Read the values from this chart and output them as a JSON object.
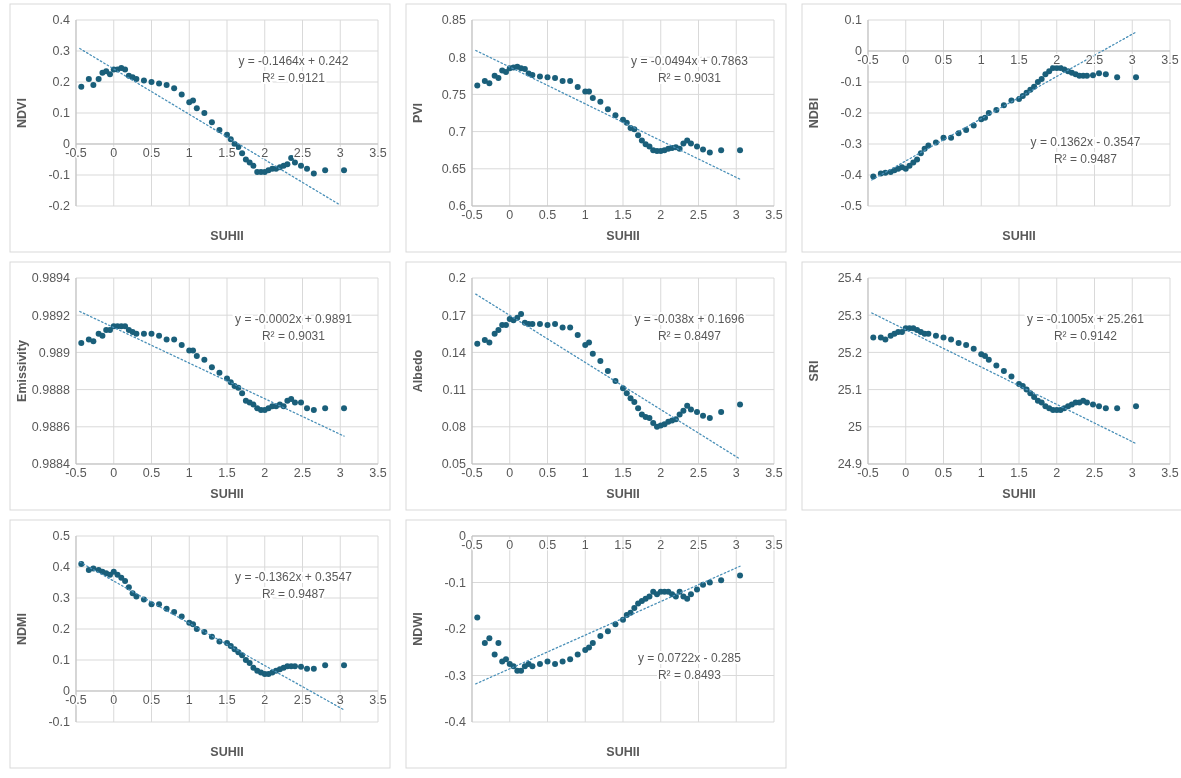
{
  "chart_data": [
    {
      "type": "scatter",
      "xlabel": "SUHII",
      "ylabel": "NDVI",
      "xlim": [
        -0.5,
        3.5
      ],
      "xticks": [
        -0.5,
        0,
        0.5,
        1,
        1.5,
        2,
        2.5,
        3,
        3.5
      ],
      "ylim": [
        -0.2,
        0.4
      ],
      "yticks": [
        -0.2,
        -0.1,
        0,
        0.1,
        0.2,
        0.3,
        0.4
      ],
      "grid": true,
      "marker": "circle",
      "x": [
        -0.43,
        -0.33,
        -0.27,
        -0.2,
        -0.15,
        -0.1,
        -0.05,
        0,
        0.05,
        0.1,
        0.15,
        0.2,
        0.25,
        0.3,
        0.4,
        0.5,
        0.6,
        0.7,
        0.8,
        0.9,
        1.0,
        1.05,
        1.1,
        1.2,
        1.3,
        1.4,
        1.5,
        1.55,
        1.6,
        1.65,
        1.7,
        1.75,
        1.8,
        1.85,
        1.9,
        1.95,
        2.0,
        2.05,
        2.1,
        2.15,
        2.2,
        2.25,
        2.3,
        2.35,
        2.4,
        2.48,
        2.56,
        2.65,
        2.8,
        3.05
      ],
      "series": [
        {
          "color": "#1a5f7a",
          "values": [
            0.185,
            0.21,
            0.19,
            0.21,
            0.23,
            0.235,
            0.225,
            0.24,
            0.24,
            0.245,
            0.24,
            0.22,
            0.215,
            0.21,
            0.205,
            0.2,
            0.195,
            0.19,
            0.18,
            0.16,
            0.135,
            0.14,
            0.115,
            0.1,
            0.07,
            0.045,
            0.03,
            0.015,
            0.0,
            -0.01,
            -0.03,
            -0.05,
            -0.06,
            -0.07,
            -0.09,
            -0.09,
            -0.09,
            -0.085,
            -0.08,
            -0.08,
            -0.075,
            -0.07,
            -0.065,
            -0.045,
            -0.06,
            -0.07,
            -0.08,
            -0.095,
            -0.085,
            -0.085
          ]
        },
        {
          "type": "line",
          "x": [
            -0.45,
            3.0
          ],
          "values": [
            0.308,
            -0.197
          ],
          "color": "#4a90b8",
          "line_style": "dotted",
          "marker": "none"
        }
      ],
      "annotations": [
        "y = -0.1464x + 0.242",
        "R² = 0.9121"
      ]
    },
    {
      "type": "scatter",
      "xlabel": "SUHII",
      "ylabel": "PVI",
      "xlim": [
        -0.5,
        3.5
      ],
      "xticks": [
        -0.5,
        0,
        0.5,
        1,
        1.5,
        2,
        2.5,
        3,
        3.5
      ],
      "ylim": [
        0.6,
        0.85
      ],
      "yticks": [
        0.6,
        0.65,
        0.7,
        0.75,
        0.8,
        0.85
      ],
      "grid": true,
      "marker": "circle",
      "x": [
        -0.43,
        -0.33,
        -0.27,
        -0.2,
        -0.15,
        -0.1,
        -0.05,
        0,
        0.05,
        0.1,
        0.15,
        0.2,
        0.25,
        0.3,
        0.4,
        0.5,
        0.6,
        0.7,
        0.8,
        0.9,
        1.0,
        1.05,
        1.1,
        1.2,
        1.3,
        1.4,
        1.5,
        1.55,
        1.6,
        1.65,
        1.7,
        1.75,
        1.8,
        1.85,
        1.9,
        1.95,
        2.0,
        2.05,
        2.1,
        2.15,
        2.2,
        2.25,
        2.3,
        2.35,
        2.4,
        2.48,
        2.56,
        2.65,
        2.8,
        3.05
      ],
      "series": [
        {
          "color": "#1a5f7a",
          "values": [
            0.762,
            0.768,
            0.765,
            0.775,
            0.772,
            0.782,
            0.78,
            0.785,
            0.786,
            0.787,
            0.785,
            0.784,
            0.778,
            0.776,
            0.774,
            0.773,
            0.772,
            0.768,
            0.768,
            0.76,
            0.754,
            0.754,
            0.745,
            0.74,
            0.73,
            0.722,
            0.716,
            0.712,
            0.705,
            0.703,
            0.695,
            0.688,
            0.683,
            0.68,
            0.675,
            0.674,
            0.674,
            0.675,
            0.677,
            0.678,
            0.679,
            0.677,
            0.684,
            0.688,
            0.684,
            0.68,
            0.676,
            0.672,
            0.675,
            0.675
          ]
        },
        {
          "type": "line",
          "x": [
            -0.45,
            3.05
          ],
          "values": [
            0.809,
            0.636
          ],
          "color": "#4a90b8",
          "line_style": "dotted",
          "marker": "none"
        }
      ],
      "annotations": [
        "y = -0.0494x + 0.7863",
        "R² = 0.9031"
      ]
    },
    {
      "type": "scatter",
      "xlabel": "SUHII",
      "ylabel": "NDBI",
      "xlim": [
        -0.5,
        3.5
      ],
      "xticks": [
        -0.5,
        0,
        0.5,
        1,
        1.5,
        2,
        2.5,
        3,
        3.5
      ],
      "ylim": [
        -0.5,
        0.1
      ],
      "yticks": [
        -0.5,
        -0.4,
        -0.3,
        -0.2,
        -0.1,
        0,
        0.1
      ],
      "grid": true,
      "marker": "circle",
      "x": [
        -0.43,
        -0.33,
        -0.27,
        -0.2,
        -0.15,
        -0.1,
        -0.05,
        0,
        0.05,
        0.1,
        0.15,
        0.2,
        0.25,
        0.3,
        0.4,
        0.5,
        0.6,
        0.7,
        0.8,
        0.9,
        1.0,
        1.05,
        1.1,
        1.2,
        1.3,
        1.4,
        1.5,
        1.55,
        1.6,
        1.65,
        1.7,
        1.75,
        1.8,
        1.85,
        1.9,
        1.95,
        2.0,
        2.05,
        2.1,
        2.15,
        2.2,
        2.25,
        2.3,
        2.35,
        2.4,
        2.48,
        2.56,
        2.65,
        2.8,
        3.05
      ],
      "series": [
        {
          "color": "#1a5f7a",
          "values": [
            -0.405,
            -0.395,
            -0.393,
            -0.39,
            -0.385,
            -0.38,
            -0.375,
            -0.38,
            -0.37,
            -0.36,
            -0.35,
            -0.33,
            -0.315,
            -0.305,
            -0.295,
            -0.28,
            -0.28,
            -0.265,
            -0.255,
            -0.24,
            -0.22,
            -0.215,
            -0.2,
            -0.19,
            -0.175,
            -0.16,
            -0.155,
            -0.145,
            -0.135,
            -0.125,
            -0.115,
            -0.1,
            -0.09,
            -0.075,
            -0.065,
            -0.055,
            -0.055,
            -0.055,
            -0.06,
            -0.065,
            -0.07,
            -0.075,
            -0.08,
            -0.08,
            -0.08,
            -0.078,
            -0.072,
            -0.075,
            -0.085,
            -0.085
          ]
        },
        {
          "type": "line",
          "x": [
            -0.45,
            3.05
          ],
          "values": [
            -0.416,
            0.061
          ],
          "color": "#4a90b8",
          "line_style": "dotted",
          "marker": "none"
        }
      ],
      "annotations": [
        "y = 0.1362x - 0.3547",
        "R² = 0.9487"
      ]
    },
    {
      "type": "scatter",
      "xlabel": "SUHII",
      "ylabel": "Emissivity",
      "xlim": [
        -0.5,
        3.5
      ],
      "xticks": [
        -0.5,
        0,
        0.5,
        1,
        1.5,
        2,
        2.5,
        3,
        3.5
      ],
      "ylim": [
        0.9884,
        0.9894
      ],
      "yticks": [
        0.9884,
        0.9886,
        0.9888,
        0.989,
        0.9892,
        0.9894
      ],
      "grid": true,
      "marker": "circle",
      "x": [
        -0.43,
        -0.33,
        -0.27,
        -0.2,
        -0.15,
        -0.1,
        -0.05,
        0,
        0.05,
        0.1,
        0.15,
        0.2,
        0.25,
        0.3,
        0.4,
        0.5,
        0.6,
        0.7,
        0.8,
        0.9,
        1.0,
        1.05,
        1.1,
        1.2,
        1.3,
        1.4,
        1.5,
        1.55,
        1.6,
        1.65,
        1.7,
        1.75,
        1.8,
        1.85,
        1.9,
        1.95,
        2.0,
        2.05,
        2.1,
        2.15,
        2.2,
        2.25,
        2.3,
        2.35,
        2.4,
        2.48,
        2.56,
        2.65,
        2.8,
        3.05
      ],
      "series": [
        {
          "color": "#1a5f7a",
          "values": [
            0.98905,
            0.98907,
            0.98906,
            0.9891,
            0.98909,
            0.98912,
            0.98912,
            0.98914,
            0.98914,
            0.98914,
            0.98914,
            0.98912,
            0.98911,
            0.9891,
            0.9891,
            0.9891,
            0.98909,
            0.98907,
            0.98907,
            0.98904,
            0.98901,
            0.98901,
            0.98898,
            0.98896,
            0.98892,
            0.98889,
            0.98886,
            0.98884,
            0.98882,
            0.98881,
            0.98878,
            0.98874,
            0.98873,
            0.98872,
            0.9887,
            0.98869,
            0.98869,
            0.9887,
            0.98871,
            0.98871,
            0.98872,
            0.98871,
            0.98874,
            0.98875,
            0.98873,
            0.98873,
            0.9887,
            0.98869,
            0.9887,
            0.9887
          ]
        },
        {
          "type": "line",
          "x": [
            -0.45,
            3.05
          ],
          "values": [
            0.98922,
            0.98855
          ],
          "color": "#4a90b8",
          "line_style": "dotted",
          "marker": "none"
        }
      ],
      "annotations": [
        "y = -0.0002x + 0.9891",
        "R² = 0.9031"
      ]
    },
    {
      "type": "scatter",
      "xlabel": "SUHII",
      "ylabel": "Albedo",
      "xlim": [
        -0.5,
        3.5
      ],
      "xticks": [
        -0.5,
        0,
        0.5,
        1,
        1.5,
        2,
        2.5,
        3,
        3.5
      ],
      "ylim": [
        0.05,
        0.2
      ],
      "yticks": [
        0.05,
        0.08,
        0.11,
        0.14,
        0.17,
        0.2
      ],
      "grid": true,
      "marker": "circle",
      "x": [
        -0.43,
        -0.33,
        -0.27,
        -0.2,
        -0.15,
        -0.1,
        -0.05,
        0,
        0.05,
        0.1,
        0.15,
        0.2,
        0.25,
        0.3,
        0.4,
        0.5,
        0.6,
        0.7,
        0.8,
        0.9,
        1.0,
        1.05,
        1.1,
        1.2,
        1.3,
        1.4,
        1.5,
        1.55,
        1.6,
        1.65,
        1.7,
        1.75,
        1.8,
        1.85,
        1.9,
        1.95,
        2.0,
        2.05,
        2.1,
        2.15,
        2.2,
        2.25,
        2.3,
        2.35,
        2.4,
        2.48,
        2.56,
        2.65,
        2.8,
        3.05
      ],
      "series": [
        {
          "color": "#1a5f7a",
          "values": [
            0.147,
            0.15,
            0.148,
            0.155,
            0.158,
            0.162,
            0.162,
            0.167,
            0.166,
            0.168,
            0.171,
            0.164,
            0.163,
            0.163,
            0.163,
            0.162,
            0.163,
            0.16,
            0.16,
            0.154,
            0.146,
            0.148,
            0.139,
            0.133,
            0.125,
            0.117,
            0.111,
            0.107,
            0.103,
            0.1,
            0.095,
            0.09,
            0.088,
            0.087,
            0.083,
            0.08,
            0.081,
            0.082,
            0.084,
            0.085,
            0.086,
            0.09,
            0.093,
            0.097,
            0.094,
            0.092,
            0.089,
            0.087,
            0.092,
            0.098
          ]
        },
        {
          "type": "line",
          "x": [
            -0.45,
            3.05
          ],
          "values": [
            0.187,
            0.054
          ],
          "color": "#4a90b8",
          "line_style": "dotted",
          "marker": "none"
        }
      ],
      "annotations": [
        "y = -0.038x + 0.1696",
        "R² = 0.8497"
      ]
    },
    {
      "type": "scatter",
      "xlabel": "SUHII",
      "ylabel": "SRI",
      "xlim": [
        -0.5,
        3.5
      ],
      "xticks": [
        -0.5,
        0,
        0.5,
        1,
        1.5,
        2,
        2.5,
        3,
        3.5
      ],
      "ylim": [
        24.9,
        25.4
      ],
      "yticks": [
        24.9,
        25,
        25.1,
        25.2,
        25.3,
        25.4
      ],
      "grid": true,
      "marker": "circle",
      "x": [
        -0.43,
        -0.33,
        -0.27,
        -0.2,
        -0.15,
        -0.1,
        -0.05,
        0,
        0.05,
        0.1,
        0.15,
        0.2,
        0.25,
        0.3,
        0.4,
        0.5,
        0.6,
        0.7,
        0.8,
        0.9,
        1.0,
        1.05,
        1.1,
        1.2,
        1.3,
        1.4,
        1.5,
        1.55,
        1.6,
        1.65,
        1.7,
        1.75,
        1.8,
        1.85,
        1.9,
        1.95,
        2.0,
        2.05,
        2.1,
        2.15,
        2.2,
        2.25,
        2.3,
        2.35,
        2.4,
        2.48,
        2.56,
        2.65,
        2.8,
        3.05
      ],
      "series": [
        {
          "color": "#1a5f7a",
          "values": [
            25.24,
            25.24,
            25.235,
            25.245,
            25.25,
            25.255,
            25.255,
            25.265,
            25.265,
            25.265,
            25.26,
            25.255,
            25.25,
            25.25,
            25.245,
            25.24,
            25.235,
            25.225,
            25.22,
            25.21,
            25.195,
            25.19,
            25.18,
            25.165,
            25.15,
            25.135,
            25.115,
            25.11,
            25.1,
            25.09,
            25.08,
            25.07,
            25.065,
            25.055,
            25.05,
            25.045,
            25.045,
            25.045,
            25.05,
            25.055,
            25.06,
            25.065,
            25.065,
            25.07,
            25.065,
            25.06,
            25.055,
            25.05,
            25.05,
            25.055
          ]
        },
        {
          "type": "line",
          "x": [
            -0.45,
            3.05
          ],
          "values": [
            25.306,
            24.955
          ],
          "color": "#4a90b8",
          "line_style": "dotted",
          "marker": "none"
        }
      ],
      "annotations": [
        "y = -0.1005x + 25.261",
        "R² = 0.9142"
      ]
    },
    {
      "type": "scatter",
      "xlabel": "SUHII",
      "ylabel": "NDMI",
      "xlim": [
        -0.5,
        3.5
      ],
      "xticks": [
        -0.5,
        0,
        0.5,
        1,
        1.5,
        2,
        2.5,
        3,
        3.5
      ],
      "ylim": [
        -0.1,
        0.5
      ],
      "yticks": [
        -0.1,
        0,
        0.1,
        0.2,
        0.3,
        0.4,
        0.5
      ],
      "grid": true,
      "marker": "circle",
      "x": [
        -0.43,
        -0.33,
        -0.27,
        -0.2,
        -0.15,
        -0.1,
        -0.05,
        0,
        0.05,
        0.1,
        0.15,
        0.2,
        0.25,
        0.3,
        0.4,
        0.5,
        0.6,
        0.7,
        0.8,
        0.9,
        1.0,
        1.05,
        1.1,
        1.2,
        1.3,
        1.4,
        1.5,
        1.55,
        1.6,
        1.65,
        1.7,
        1.75,
        1.8,
        1.85,
        1.9,
        1.95,
        2.0,
        2.05,
        2.1,
        2.15,
        2.2,
        2.25,
        2.3,
        2.35,
        2.4,
        2.48,
        2.56,
        2.65,
        2.8,
        3.05
      ],
      "series": [
        {
          "color": "#1a5f7a",
          "values": [
            0.41,
            0.39,
            0.395,
            0.39,
            0.385,
            0.38,
            0.375,
            0.385,
            0.375,
            0.365,
            0.355,
            0.335,
            0.315,
            0.305,
            0.295,
            0.28,
            0.28,
            0.265,
            0.255,
            0.24,
            0.22,
            0.215,
            0.2,
            0.19,
            0.175,
            0.16,
            0.155,
            0.145,
            0.135,
            0.125,
            0.115,
            0.1,
            0.09,
            0.075,
            0.065,
            0.06,
            0.055,
            0.055,
            0.06,
            0.065,
            0.07,
            0.075,
            0.08,
            0.08,
            0.08,
            0.078,
            0.072,
            0.072,
            0.083,
            0.083
          ]
        },
        {
          "type": "line",
          "x": [
            -0.45,
            3.05
          ],
          "values": [
            0.416,
            -0.061
          ],
          "color": "#4a90b8",
          "line_style": "dotted",
          "marker": "none"
        }
      ],
      "annotations": [
        "y = -0.1362x + 0.3547",
        "R² = 0.9487"
      ]
    },
    {
      "type": "scatter",
      "xlabel": "SUHII",
      "ylabel": "NDWI",
      "xlim": [
        -0.5,
        3.5
      ],
      "xticks": [
        -0.5,
        0,
        0.5,
        1,
        1.5,
        2,
        2.5,
        3,
        3.5
      ],
      "ylim": [
        -0.4,
        0
      ],
      "yticks": [
        -0.4,
        -0.3,
        -0.2,
        -0.1,
        0
      ],
      "grid": true,
      "marker": "circle",
      "x": [
        -0.43,
        -0.33,
        -0.27,
        -0.2,
        -0.15,
        -0.1,
        -0.05,
        0,
        0.05,
        0.1,
        0.15,
        0.2,
        0.25,
        0.3,
        0.4,
        0.5,
        0.6,
        0.7,
        0.8,
        0.9,
        1.0,
        1.05,
        1.1,
        1.2,
        1.3,
        1.4,
        1.5,
        1.55,
        1.6,
        1.65,
        1.7,
        1.75,
        1.8,
        1.85,
        1.9,
        1.95,
        2.0,
        2.05,
        2.1,
        2.15,
        2.2,
        2.25,
        2.3,
        2.35,
        2.4,
        2.48,
        2.56,
        2.65,
        2.8,
        3.05
      ],
      "series": [
        {
          "color": "#1a5f7a",
          "values": [
            -0.175,
            -0.23,
            -0.22,
            -0.255,
            -0.23,
            -0.27,
            -0.265,
            -0.275,
            -0.28,
            -0.29,
            -0.29,
            -0.28,
            -0.275,
            -0.28,
            -0.275,
            -0.27,
            -0.275,
            -0.27,
            -0.265,
            -0.255,
            -0.245,
            -0.24,
            -0.23,
            -0.215,
            -0.205,
            -0.19,
            -0.18,
            -0.17,
            -0.165,
            -0.155,
            -0.145,
            -0.14,
            -0.135,
            -0.13,
            -0.12,
            -0.125,
            -0.12,
            -0.12,
            -0.12,
            -0.125,
            -0.13,
            -0.12,
            -0.13,
            -0.135,
            -0.125,
            -0.115,
            -0.105,
            -0.1,
            -0.095,
            -0.085
          ]
        },
        {
          "type": "line",
          "x": [
            -0.45,
            3.05
          ],
          "values": [
            -0.318,
            -0.065
          ],
          "color": "#4a90b8",
          "line_style": "dotted",
          "marker": "none"
        }
      ],
      "annotations": [
        "y = 0.0722x - 0.285",
        "R² = 0.8493"
      ]
    }
  ]
}
